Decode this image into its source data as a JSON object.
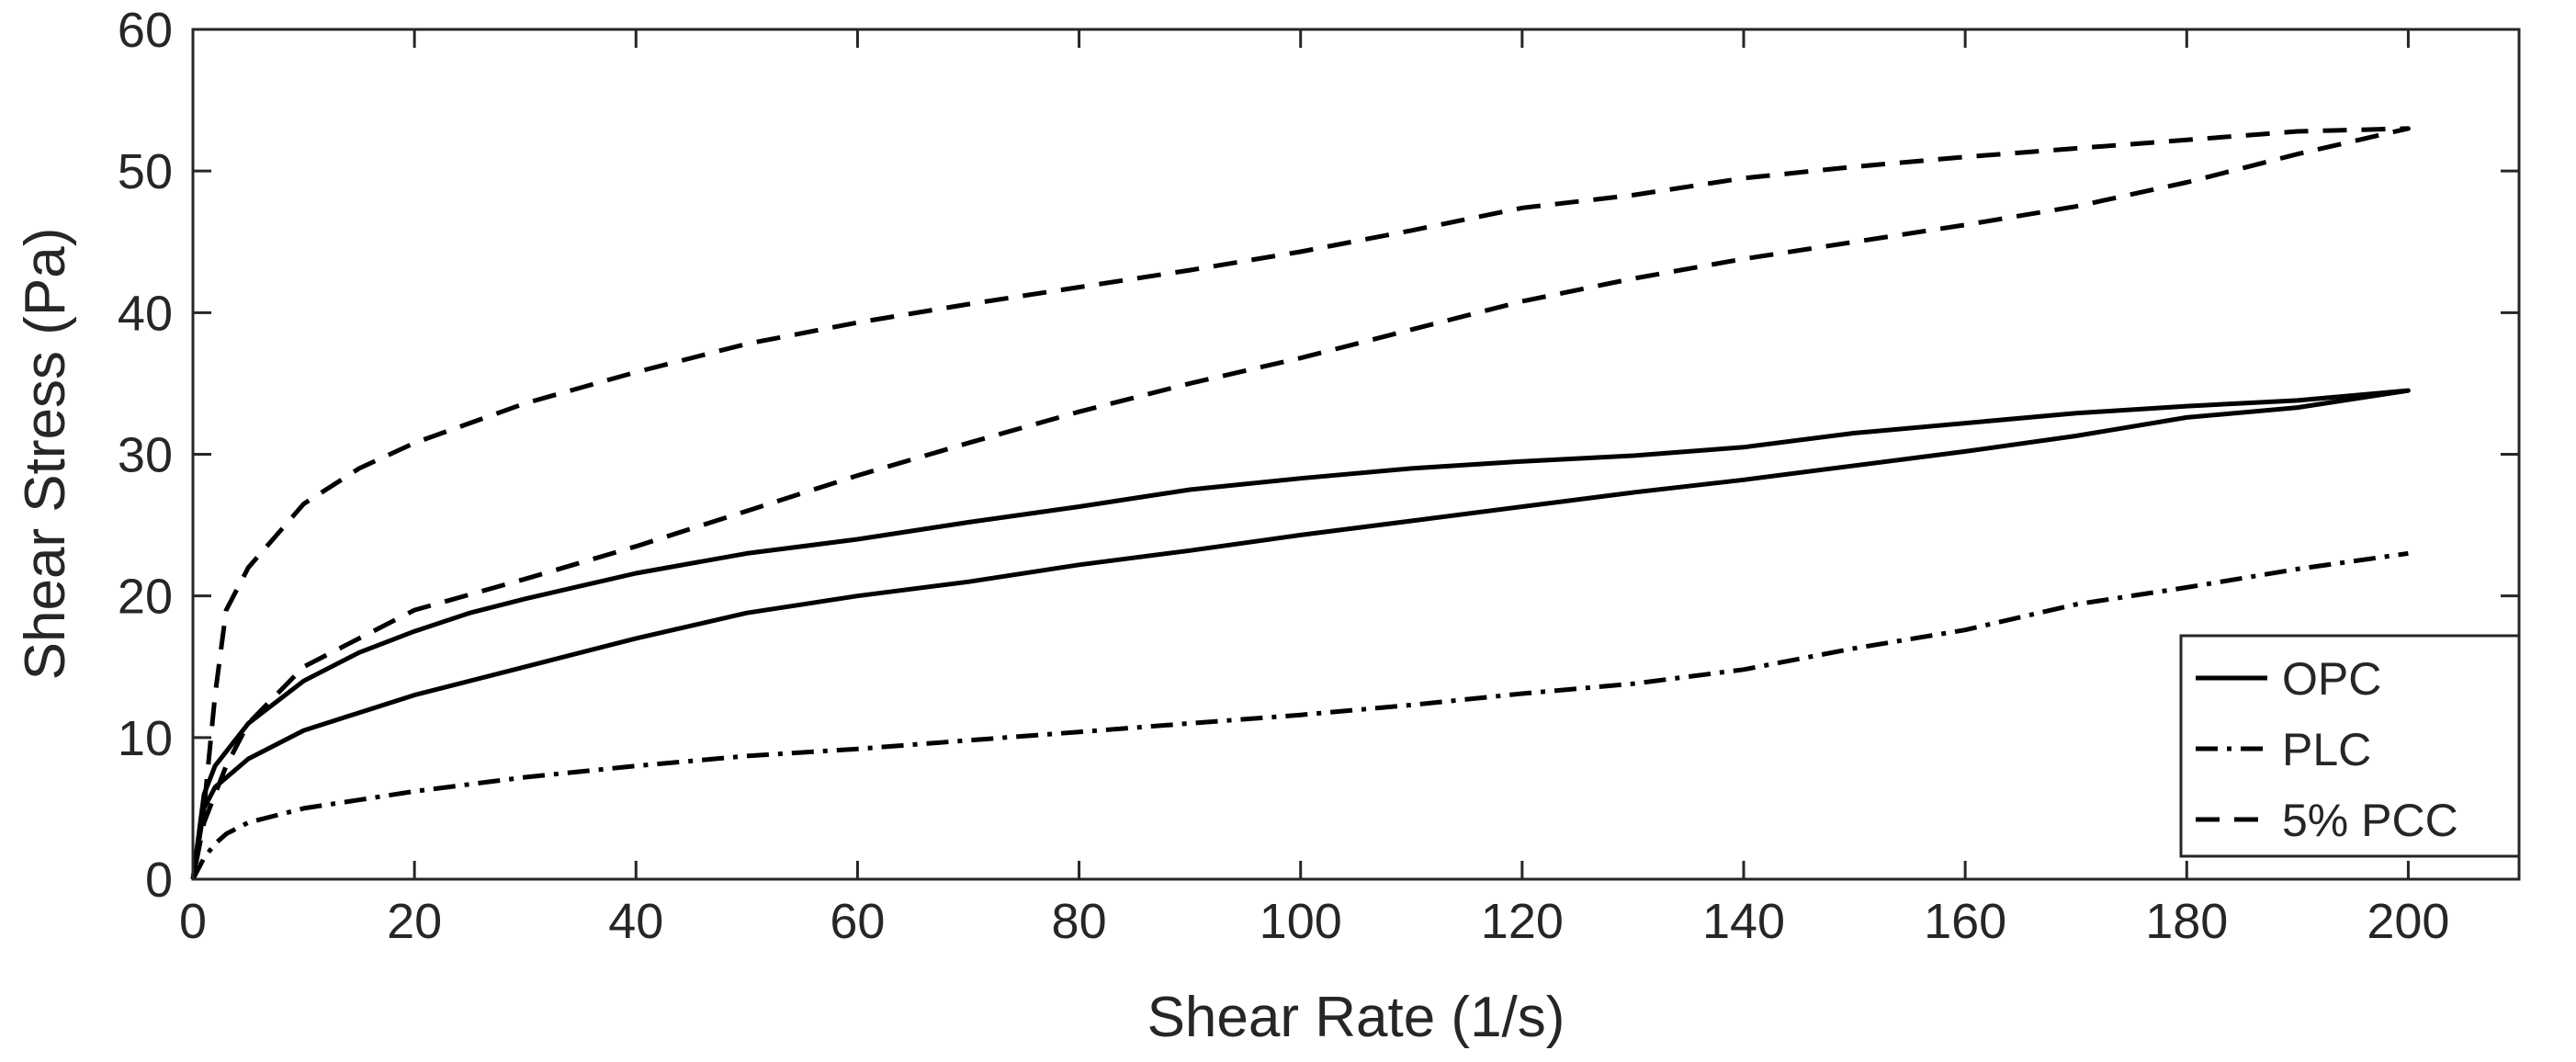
{
  "chart_data": {
    "type": "line",
    "title": "",
    "xlabel": "Shear Rate (1/s)",
    "ylabel": "Shear Stress (Pa)",
    "xlim": [
      0,
      210
    ],
    "ylim": [
      0,
      60
    ],
    "xticks": [
      0,
      20,
      40,
      60,
      80,
      100,
      120,
      140,
      160,
      180,
      200
    ],
    "yticks": [
      0,
      10,
      20,
      30,
      40,
      50,
      60
    ],
    "grid": false,
    "legend_position": "bottom-right",
    "series": [
      {
        "name": "OPC",
        "style": "solid",
        "x": [
          0,
          1,
          2,
          5,
          10,
          15,
          20,
          25,
          30,
          40,
          50,
          60,
          70,
          80,
          90,
          100,
          110,
          120,
          130,
          140,
          150,
          160,
          170,
          180,
          190,
          200,
          190,
          180,
          170,
          160,
          150,
          140,
          130,
          120,
          110,
          100,
          90,
          80,
          70,
          60,
          50,
          40,
          30,
          20,
          10,
          5,
          2,
          1,
          0
        ],
        "y": [
          0,
          6,
          8,
          11,
          14,
          16,
          17.5,
          18.8,
          19.8,
          21.6,
          23,
          24,
          25.2,
          26.3,
          27.5,
          28.3,
          29,
          29.5,
          29.9,
          30.5,
          31.5,
          32.2,
          32.9,
          33.4,
          33.8,
          34.5,
          33.3,
          32.6,
          31.3,
          30.2,
          29.2,
          28.2,
          27.3,
          26.3,
          25.3,
          24.3,
          23.2,
          22.2,
          21,
          20,
          18.8,
          17,
          15,
          13,
          10.5,
          8.5,
          6.5,
          5,
          0
        ]
      },
      {
        "name": "PLC",
        "style": "dash-dot",
        "x": [
          0,
          1,
          2,
          3,
          5,
          10,
          15,
          20,
          30,
          40,
          50,
          60,
          70,
          80,
          90,
          100,
          110,
          120,
          130,
          140,
          150,
          160,
          170,
          180,
          190,
          200
        ],
        "y": [
          0,
          1.5,
          2.5,
          3.2,
          4,
          5,
          5.6,
          6.2,
          7.2,
          8,
          8.7,
          9.2,
          9.8,
          10.4,
          11,
          11.6,
          12.3,
          13.1,
          13.8,
          14.8,
          16.3,
          17.6,
          19.4,
          20.6,
          21.9,
          23
        ]
      },
      {
        "name": "5% PCC",
        "style": "dashed",
        "x": [
          0,
          1,
          2,
          3,
          5,
          10,
          15,
          20,
          30,
          40,
          50,
          60,
          70,
          80,
          90,
          100,
          110,
          120,
          130,
          140,
          150,
          160,
          170,
          180,
          190,
          200,
          190,
          180,
          170,
          160,
          150,
          140,
          130,
          120,
          110,
          100,
          90,
          80,
          70,
          60,
          50,
          40,
          30,
          20,
          10,
          5,
          3,
          2,
          1,
          0
        ],
        "y": [
          0,
          5,
          13,
          19,
          22,
          26.5,
          29,
          30.8,
          33.6,
          35.8,
          37.8,
          39.3,
          40.6,
          41.8,
          43,
          44.3,
          45.8,
          47.4,
          48.3,
          49.5,
          50.3,
          51,
          51.6,
          52.2,
          52.8,
          53,
          51.2,
          49.2,
          47.5,
          46.2,
          45,
          43.8,
          42.4,
          40.8,
          38.8,
          36.8,
          35,
          33,
          30.8,
          28.5,
          26,
          23.5,
          21.2,
          19,
          15,
          11,
          8,
          6,
          4,
          0
        ]
      }
    ]
  }
}
